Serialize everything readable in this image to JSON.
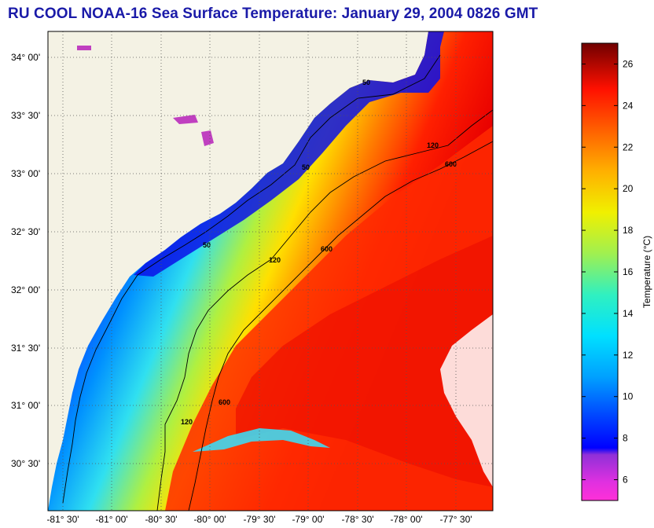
{
  "title": "RU COOL  NOAA-16  Sea Surface Temperature:  January 29, 2004 0826 GMT",
  "map": {
    "lat_labels": [
      "34° 00'",
      "33° 30'",
      "33° 00'",
      "32° 30'",
      "32° 00'",
      "31° 30'",
      "31° 00'",
      "30° 30'"
    ],
    "lon_labels": [
      "-81° 30'",
      "-81° 00'",
      "-80° 30'",
      "-80° 00'",
      "-79° 30'",
      "-79° 00'",
      "-78° 30'",
      "-78° 00'",
      "-77° 30'"
    ],
    "contour_labels": [
      "50",
      "120",
      "600"
    ]
  },
  "colorbar": {
    "label": "Temperature (°C)",
    "ticks": [
      "6",
      "8",
      "10",
      "12",
      "14",
      "16",
      "18",
      "20",
      "22",
      "24",
      "26"
    ],
    "min": 5,
    "max": 27
  },
  "colors": {
    "title": "#1a1aa8",
    "land": "#f4f2e4",
    "cloud": "#ffffff"
  }
}
